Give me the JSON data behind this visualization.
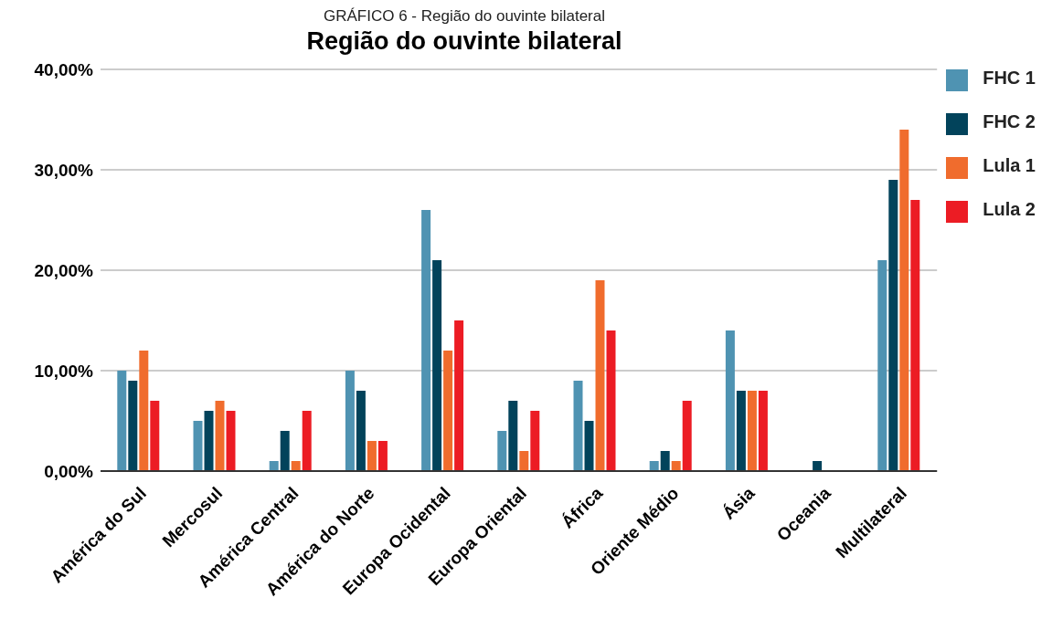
{
  "chart_data": {
    "type": "bar",
    "title": "Região do ouvinte bilateral",
    "annotations": [
      "GRÁFICO 6 - Região do ouvinte bilateral"
    ],
    "categories": [
      "América do Sul",
      "Mercosul",
      "América Central",
      "América do Norte",
      "Europa Ocidental",
      "Europa Oriental",
      "África",
      "Oriente Médio",
      "Ásia",
      "Oceania",
      "Multilateral"
    ],
    "series": [
      {
        "name": "FHC 1",
        "color": "#4f93b2",
        "values": [
          10,
          5,
          1,
          10,
          26,
          4,
          9,
          1,
          14,
          0,
          21
        ]
      },
      {
        "name": "FHC 2",
        "color": "#02435b",
        "values": [
          9,
          6,
          4,
          8,
          21,
          7,
          5,
          2,
          8,
          1,
          29
        ]
      },
      {
        "name": "Lula 1",
        "color": "#f06c2d",
        "values": [
          12,
          7,
          1,
          3,
          12,
          2,
          19,
          1,
          8,
          0,
          34
        ]
      },
      {
        "name": "Lula 2",
        "color": "#ec1c24",
        "values": [
          7,
          6,
          6,
          3,
          15,
          6,
          14,
          7,
          8,
          0,
          27
        ]
      }
    ],
    "ylim": [
      0,
      40
    ],
    "yticks": [
      {
        "value": 0,
        "label": "0,00%"
      },
      {
        "value": 10,
        "label": "10,00%"
      },
      {
        "value": 20,
        "label": "20,00%"
      },
      {
        "value": 30,
        "label": "30,00%"
      },
      {
        "value": 40,
        "label": "40,00%"
      }
    ],
    "grid": "y",
    "legend": "top right"
  }
}
